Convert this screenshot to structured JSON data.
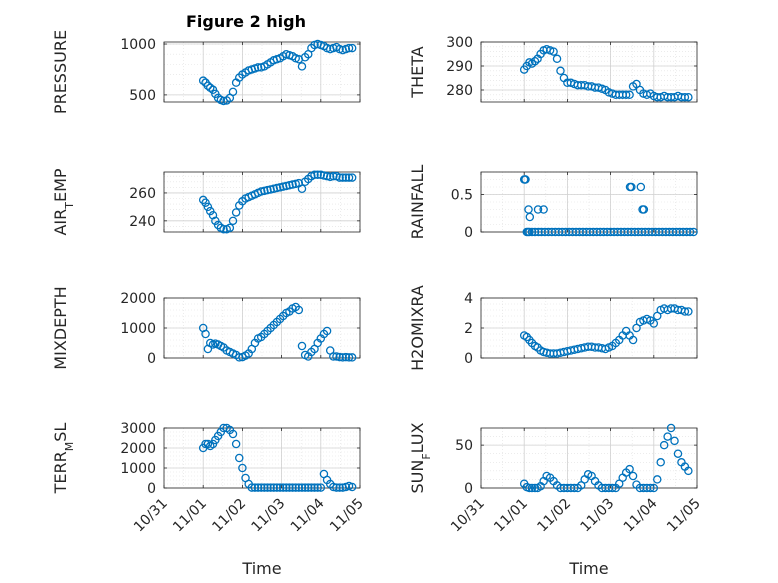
{
  "figure": {
    "title": "Figure 2 high",
    "background": "#ffffff",
    "marker_color": "#0072BD"
  },
  "chart_data": [
    {
      "type": "scatter",
      "ylabel": "PRESSURE",
      "xlabel": "",
      "xlim": [
        "10/31",
        "11/05"
      ],
      "ylim": [
        430,
        1020
      ],
      "yticks": [
        500,
        1000
      ],
      "grid": true,
      "x_days": [
        1.0,
        1.06,
        1.12,
        1.18,
        1.25,
        1.31,
        1.38,
        1.45,
        1.52,
        1.6,
        1.68,
        1.76,
        1.84,
        1.92,
        2.0,
        2.08,
        2.16,
        2.24,
        2.32,
        2.4,
        2.48,
        2.56,
        2.64,
        2.72,
        2.8,
        2.88,
        2.96,
        3.04,
        3.12,
        3.2,
        3.28,
        3.36,
        3.44,
        3.52,
        3.6,
        3.68,
        3.76,
        3.84,
        3.92,
        4.0,
        4.08,
        4.16,
        4.24,
        4.32,
        4.4,
        4.48,
        4.56,
        4.64,
        4.72,
        4.8
      ],
      "y": [
        640,
        620,
        590,
        570,
        550,
        510,
        470,
        450,
        440,
        445,
        470,
        530,
        620,
        670,
        700,
        720,
        740,
        750,
        760,
        770,
        770,
        780,
        800,
        820,
        840,
        850,
        860,
        880,
        900,
        890,
        880,
        860,
        850,
        780,
        870,
        900,
        960,
        990,
        1000,
        990,
        980,
        960,
        950,
        960,
        970,
        950,
        940,
        950,
        960,
        960
      ]
    },
    {
      "type": "scatter",
      "ylabel": "THETA",
      "xlabel": "",
      "xlim": [
        "10/31",
        "11/05"
      ],
      "ylim": [
        275,
        300
      ],
      "yticks": [
        280,
        290,
        300
      ],
      "grid": true,
      "x_days": [
        1.0,
        1.06,
        1.12,
        1.18,
        1.25,
        1.31,
        1.38,
        1.45,
        1.52,
        1.6,
        1.68,
        1.76,
        1.84,
        1.92,
        2.0,
        2.08,
        2.16,
        2.24,
        2.32,
        2.4,
        2.48,
        2.56,
        2.64,
        2.72,
        2.8,
        2.88,
        2.96,
        3.04,
        3.12,
        3.2,
        3.28,
        3.36,
        3.44,
        3.52,
        3.6,
        3.68,
        3.76,
        3.84,
        3.92,
        4.0,
        4.08,
        4.16,
        4.24,
        4.32,
        4.4,
        4.48,
        4.56,
        4.64,
        4.72,
        4.8
      ],
      "y": [
        288.5,
        290,
        291.5,
        291,
        292,
        293,
        295,
        296.5,
        297,
        296.5,
        296,
        293,
        288,
        285,
        283,
        283,
        282.5,
        282,
        282,
        282,
        281.5,
        281.5,
        281,
        281,
        280.5,
        280,
        279,
        278.5,
        278,
        278,
        278,
        278,
        278,
        281.5,
        282.5,
        280,
        278.5,
        278,
        278.5,
        277.5,
        277,
        277,
        277.5,
        277,
        277,
        277,
        277.5,
        277,
        277,
        277
      ]
    },
    {
      "type": "scatter",
      "ylabel": "AIR_TEMP",
      "xlabel": "",
      "xlim": [
        "10/31",
        "11/05"
      ],
      "ylim": [
        232,
        275
      ],
      "yticks": [
        240,
        260
      ],
      "grid": true,
      "x_days": [
        1.0,
        1.06,
        1.12,
        1.18,
        1.25,
        1.31,
        1.38,
        1.45,
        1.52,
        1.6,
        1.68,
        1.76,
        1.84,
        1.92,
        2.0,
        2.08,
        2.16,
        2.24,
        2.32,
        2.4,
        2.48,
        2.56,
        2.64,
        2.72,
        2.8,
        2.88,
        2.96,
        3.04,
        3.12,
        3.2,
        3.28,
        3.36,
        3.44,
        3.52,
        3.6,
        3.68,
        3.76,
        3.84,
        3.92,
        4.0,
        4.08,
        4.16,
        4.24,
        4.32,
        4.4,
        4.48,
        4.56,
        4.64,
        4.72,
        4.8
      ],
      "y": [
        255,
        253,
        250,
        247,
        244,
        240,
        237,
        235,
        234,
        234,
        235,
        240,
        246,
        251,
        254,
        256,
        257,
        258,
        259,
        260,
        261,
        261.5,
        262,
        262.5,
        263,
        263.5,
        264,
        264.5,
        265,
        265.5,
        266,
        266.5,
        267,
        263,
        268,
        270,
        272,
        273,
        273,
        273,
        272.5,
        272,
        271.5,
        272,
        272,
        271,
        271,
        271,
        271,
        271
      ]
    },
    {
      "type": "scatter",
      "ylabel": "RAINFALL",
      "xlabel": "",
      "xlim": [
        "10/31",
        "11/05"
      ],
      "ylim": [
        0,
        0.8
      ],
      "yticks": [
        0,
        0.5
      ],
      "grid": true,
      "x_days": [
        1.0,
        1.03,
        1.06,
        1.09,
        1.12,
        1.18,
        1.25,
        1.33,
        1.4,
        1.48,
        1.56,
        1.64,
        1.72,
        1.8,
        1.88,
        1.96,
        2.04,
        2.12,
        2.2,
        2.28,
        2.36,
        2.44,
        2.52,
        2.6,
        2.68,
        2.76,
        2.84,
        2.92,
        3.0,
        3.08,
        3.16,
        3.24,
        3.32,
        3.4,
        3.48,
        3.56,
        3.64,
        3.72,
        3.8,
        3.88,
        3.96,
        4.04,
        4.12,
        4.2,
        4.28,
        4.36,
        4.44,
        4.52,
        4.6,
        4.68,
        4.76,
        4.84,
        4.92,
        1.02,
        1.1,
        1.13,
        1.32,
        1.45,
        3.45,
        3.48,
        3.7,
        3.74,
        3.77
      ],
      "y": [
        0.7,
        0.7,
        0,
        0,
        0,
        0,
        0,
        0,
        0,
        0,
        0,
        0,
        0,
        0,
        0,
        0,
        0,
        0,
        0,
        0,
        0,
        0,
        0,
        0,
        0,
        0,
        0,
        0,
        0,
        0,
        0,
        0,
        0,
        0,
        0,
        0,
        0,
        0,
        0,
        0,
        0,
        0,
        0,
        0,
        0,
        0,
        0,
        0,
        0,
        0,
        0,
        0,
        0,
        0.7,
        0.3,
        0.2,
        0.3,
        0.3,
        0.6,
        0.6,
        0.6,
        0.3,
        0.3
      ]
    },
    {
      "type": "scatter",
      "ylabel": "MIXDEPTH",
      "xlabel": "",
      "xlim": [
        "10/31",
        "11/05"
      ],
      "ylim": [
        0,
        2000
      ],
      "yticks": [
        0,
        1000,
        2000
      ],
      "grid": true,
      "x_days": [
        1.0,
        1.06,
        1.12,
        1.18,
        1.25,
        1.31,
        1.38,
        1.45,
        1.52,
        1.6,
        1.68,
        1.76,
        1.84,
        1.92,
        2.0,
        2.08,
        2.16,
        2.24,
        2.32,
        2.4,
        2.48,
        2.56,
        2.64,
        2.72,
        2.8,
        2.88,
        2.96,
        3.04,
        3.12,
        3.2,
        3.28,
        3.36,
        3.44,
        3.52,
        3.6,
        3.68,
        3.76,
        3.84,
        3.92,
        4.0,
        4.08,
        4.16,
        4.24,
        4.32,
        4.4,
        4.48,
        4.56,
        4.64,
        4.72,
        4.8
      ],
      "y": [
        1000,
        800,
        300,
        500,
        450,
        480,
        450,
        400,
        350,
        250,
        200,
        150,
        100,
        20,
        30,
        80,
        150,
        300,
        500,
        650,
        700,
        800,
        900,
        1000,
        1100,
        1200,
        1300,
        1400,
        1500,
        1550,
        1650,
        1700,
        1600,
        400,
        100,
        50,
        200,
        300,
        500,
        650,
        800,
        900,
        250,
        50,
        50,
        30,
        20,
        30,
        20,
        20
      ]
    },
    {
      "type": "scatter",
      "ylabel": "H2OMIXRA",
      "xlabel": "",
      "xlim": [
        "10/31",
        "11/05"
      ],
      "ylim": [
        0,
        4
      ],
      "yticks": [
        0,
        2,
        4
      ],
      "grid": true,
      "x_days": [
        1.0,
        1.06,
        1.12,
        1.18,
        1.25,
        1.31,
        1.38,
        1.45,
        1.52,
        1.6,
        1.68,
        1.76,
        1.84,
        1.92,
        2.0,
        2.08,
        2.16,
        2.24,
        2.32,
        2.4,
        2.48,
        2.56,
        2.64,
        2.72,
        2.8,
        2.88,
        2.96,
        3.04,
        3.12,
        3.2,
        3.28,
        3.36,
        3.44,
        3.52,
        3.6,
        3.68,
        3.76,
        3.84,
        3.92,
        4.0,
        4.08,
        4.16,
        4.24,
        4.32,
        4.4,
        4.48,
        4.56,
        4.64,
        4.72,
        4.8
      ],
      "y": [
        1.5,
        1.4,
        1.2,
        1.0,
        0.8,
        0.7,
        0.5,
        0.4,
        0.35,
        0.3,
        0.3,
        0.3,
        0.35,
        0.4,
        0.45,
        0.5,
        0.55,
        0.6,
        0.65,
        0.7,
        0.75,
        0.75,
        0.7,
        0.7,
        0.65,
        0.6,
        0.7,
        0.8,
        1.0,
        1.2,
        1.5,
        1.8,
        1.5,
        1.2,
        2.0,
        2.4,
        2.5,
        2.6,
        2.5,
        2.3,
        2.8,
        3.2,
        3.3,
        3.2,
        3.3,
        3.3,
        3.2,
        3.2,
        3.1,
        3.1
      ]
    },
    {
      "type": "scatter",
      "ylabel": "TERR_MSL",
      "xlabel": "Time",
      "xlim": [
        "10/31",
        "11/05"
      ],
      "xticks": [
        "10/31",
        "11/01",
        "11/02",
        "11/03",
        "11/04",
        "11/05"
      ],
      "ylim": [
        0,
        3000
      ],
      "yticks": [
        0,
        1000,
        2000,
        3000
      ],
      "grid": true,
      "x_days": [
        1.0,
        1.06,
        1.12,
        1.18,
        1.25,
        1.31,
        1.38,
        1.45,
        1.52,
        1.6,
        1.68,
        1.76,
        1.84,
        1.92,
        2.0,
        2.08,
        2.16,
        2.24,
        2.32,
        2.4,
        2.48,
        2.56,
        2.64,
        2.72,
        2.8,
        2.88,
        2.96,
        3.04,
        3.12,
        3.2,
        3.28,
        3.36,
        3.44,
        3.52,
        3.6,
        3.68,
        3.76,
        3.84,
        3.92,
        4.0,
        4.08,
        4.16,
        4.24,
        4.32,
        4.4,
        4.48,
        4.56,
        4.64,
        4.72,
        4.8
      ],
      "y": [
        2000,
        2200,
        2200,
        2100,
        2200,
        2400,
        2600,
        2800,
        3000,
        3000,
        2900,
        2700,
        2200,
        1500,
        1000,
        500,
        200,
        20,
        20,
        20,
        20,
        20,
        20,
        20,
        20,
        20,
        20,
        20,
        20,
        20,
        20,
        20,
        20,
        20,
        20,
        20,
        20,
        20,
        20,
        20,
        700,
        400,
        200,
        50,
        20,
        20,
        20,
        50,
        100,
        50
      ]
    },
    {
      "type": "scatter",
      "ylabel": "SUN_FLUX",
      "xlabel": "Time",
      "xlim": [
        "10/31",
        "11/05"
      ],
      "xticks": [
        "10/31",
        "11/01",
        "11/02",
        "11/03",
        "11/04",
        "11/05"
      ],
      "ylim": [
        0,
        70
      ],
      "yticks": [
        0,
        50
      ],
      "grid": true,
      "x_days": [
        1.0,
        1.06,
        1.12,
        1.18,
        1.25,
        1.31,
        1.38,
        1.45,
        1.52,
        1.6,
        1.68,
        1.76,
        1.84,
        1.92,
        2.0,
        2.08,
        2.16,
        2.24,
        2.32,
        2.4,
        2.48,
        2.56,
        2.64,
        2.72,
        2.8,
        2.88,
        2.96,
        3.04,
        3.12,
        3.2,
        3.28,
        3.36,
        3.44,
        3.52,
        3.6,
        3.68,
        3.76,
        3.84,
        3.92,
        4.0,
        4.08,
        4.16,
        4.24,
        4.32,
        4.4,
        4.48,
        4.56,
        4.64,
        4.72,
        4.8
      ],
      "y": [
        5,
        1,
        0,
        0,
        0,
        0,
        2,
        8,
        14,
        12,
        8,
        3,
        0,
        0,
        0,
        0,
        0,
        0,
        3,
        10,
        16,
        14,
        8,
        3,
        0,
        0,
        0,
        0,
        0,
        5,
        12,
        18,
        22,
        14,
        4,
        0,
        0,
        0,
        0,
        0,
        10,
        30,
        50,
        60,
        70,
        55,
        40,
        30,
        25,
        20
      ]
    }
  ]
}
